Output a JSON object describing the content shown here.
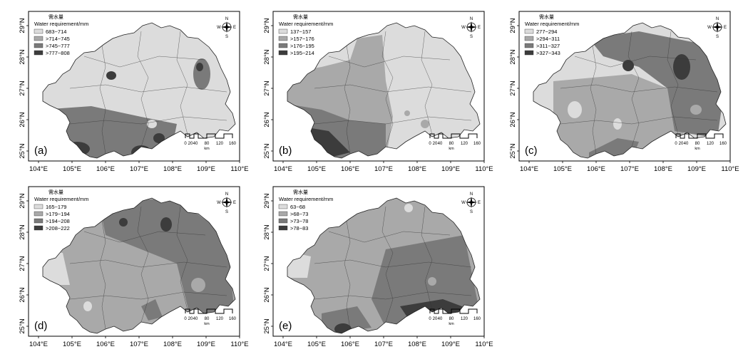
{
  "legend_title_cn": "需水量",
  "legend_title_en": "Water requirement/mm",
  "compass": {
    "n": "N",
    "s": "S",
    "e": "E",
    "w": "W"
  },
  "scalebar": {
    "ticks": [
      "0",
      "20",
      "40",
      "80",
      "120",
      "160"
    ],
    "unit": "km"
  },
  "x_ticks": [
    "104°E",
    "105°E",
    "106°E",
    "107°E",
    "108°E",
    "109°E",
    "110°E"
  ],
  "y_ticks": [
    "25°N",
    "26°N",
    "27°N",
    "28°N",
    "29°N"
  ],
  "class_colors": [
    "#dcdcdc",
    "#a9a9a9",
    "#7a7a7a",
    "#3c3c3c"
  ],
  "maps": [
    {
      "id": "a",
      "label": "(a)",
      "legend": [
        "683~714",
        ">714~745",
        ">745~777",
        ">777~808"
      ]
    },
    {
      "id": "b",
      "label": "(b)",
      "legend": [
        "137~157",
        ">157~176",
        ">176~195",
        ">195~214"
      ]
    },
    {
      "id": "c",
      "label": "(c)",
      "legend": [
        "277~294",
        ">294~311",
        ">311~327",
        ">327~343"
      ]
    },
    {
      "id": "d",
      "label": "(d)",
      "legend": [
        "165~179",
        ">179~194",
        ">194~208",
        ">208~222"
      ]
    },
    {
      "id": "e",
      "label": "(e)",
      "legend": [
        "63~68",
        ">68~73",
        ">73~78",
        ">78~83"
      ]
    }
  ]
}
